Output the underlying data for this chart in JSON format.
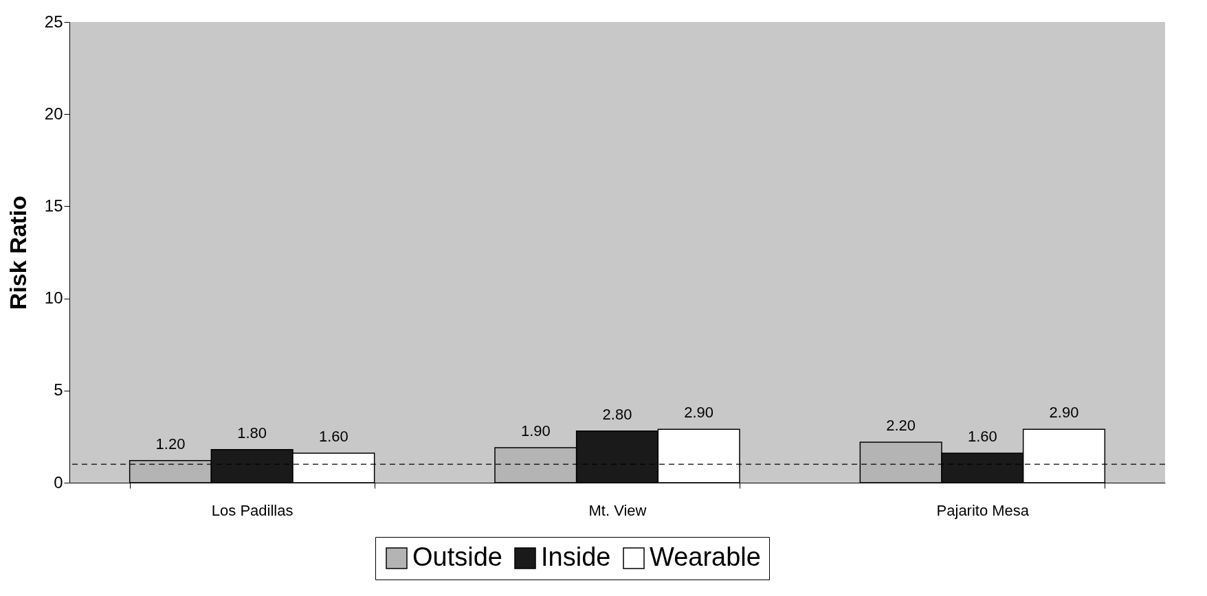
{
  "chart_data": {
    "type": "bar",
    "ylabel": "Risk Ratio",
    "categories": [
      "Los Padillas",
      "Mt. View",
      "Pajarito Mesa"
    ],
    "series": [
      {
        "name": "Outside",
        "color": "#b4b4b4",
        "values": [
          1.2,
          1.9,
          2.2
        ],
        "value_labels": [
          "1.20",
          "1.90",
          "2.20"
        ]
      },
      {
        "name": "Inside",
        "color": "#1a1a1a",
        "values": [
          1.8,
          2.8,
          1.6
        ],
        "value_labels": [
          "1.80",
          "2.80",
          "1.60"
        ]
      },
      {
        "name": "Wearable",
        "color": "#ffffff",
        "values": [
          1.6,
          2.9,
          2.9
        ],
        "value_labels": [
          "1.60",
          "2.90",
          "2.90"
        ]
      }
    ],
    "ylim": [
      0,
      25
    ],
    "yticks": [
      0,
      5,
      10,
      15,
      20,
      25
    ],
    "grid": false,
    "legend": "bottom",
    "ref_lines": [
      {
        "axis": "y",
        "value": 1,
        "line_style": "dashed",
        "color": "#000000"
      }
    ]
  }
}
